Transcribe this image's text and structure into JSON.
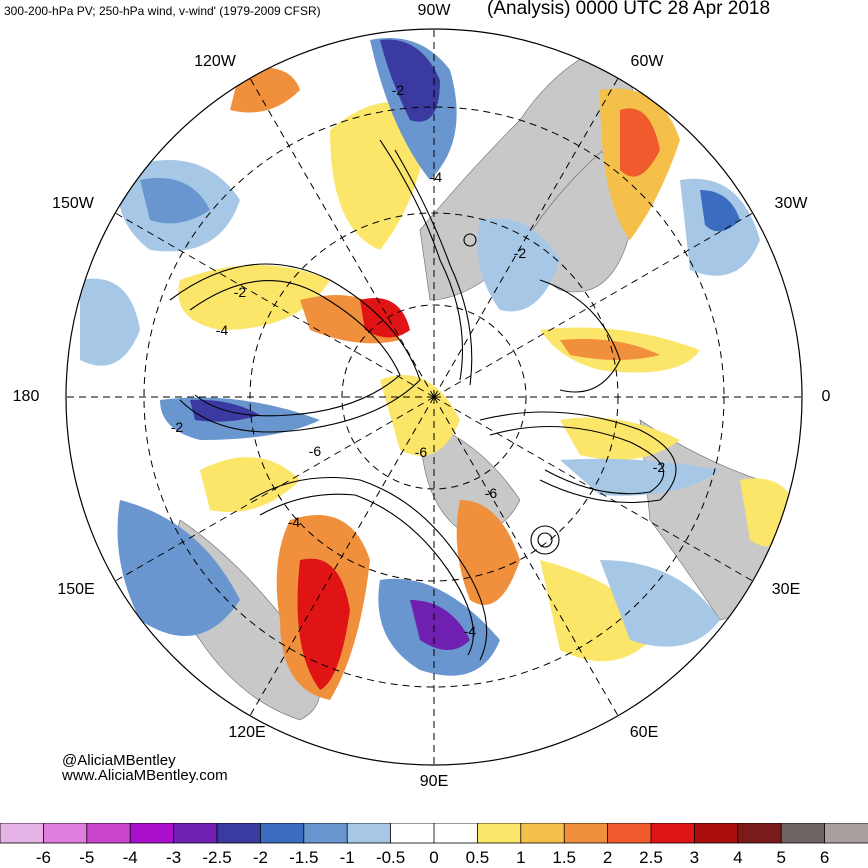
{
  "header": {
    "left_title": "300-200-hPa PV; 250-hPa wind, v-wind' (1979-2009 CFSR)",
    "right_title": "(Analysis) 0000 UTC 28 Apr 2018"
  },
  "longitude_labels": [
    "90W",
    "60W",
    "30W",
    "0",
    "30E",
    "60E",
    "90E",
    "120E",
    "150E",
    "180",
    "150W",
    "120W"
  ],
  "pv_contour_labels": [
    "-2",
    "-4",
    "-2",
    "-2",
    "-4",
    "-6",
    "-6",
    "-6",
    "-2",
    "-4",
    "-4",
    "-2"
  ],
  "credit": {
    "handle": "@AliciaMBentley",
    "url": "www.AliciaMBentley.com"
  },
  "colorbar": {
    "labels": [
      "-6",
      "-5",
      "-4",
      "-3",
      "-2.5",
      "-2",
      "-1.5",
      "-1",
      "-0.5",
      "0",
      "0.5",
      "1",
      "1.5",
      "2",
      "2.5",
      "3",
      "4",
      "5",
      "6"
    ],
    "colors": [
      "#e6b3e6",
      "#e07ee0",
      "#cc44cc",
      "#aa10cc",
      "#7020b0",
      "#3a3aa0",
      "#3a6cc0",
      "#6a96d0",
      "#a6c8e6",
      "#ffffff",
      "#ffffff",
      "#fce66a",
      "#f4c04a",
      "#f0903c",
      "#f05a2c",
      "#e01414",
      "#a80c0c",
      "#7a1a1a",
      "#6e6464",
      "#aaa0a0"
    ]
  },
  "palette": {
    "ocean": "#ffffff",
    "land": "#c8c8c8",
    "warm": [
      "#fce66a",
      "#f4c04a",
      "#f0903c",
      "#f05a2c",
      "#e01414",
      "#a80c0c"
    ],
    "cool": [
      "#a6c8e6",
      "#6a96d0",
      "#3a6cc0",
      "#3a3aa0",
      "#7020b0",
      "#aa10cc"
    ]
  }
}
